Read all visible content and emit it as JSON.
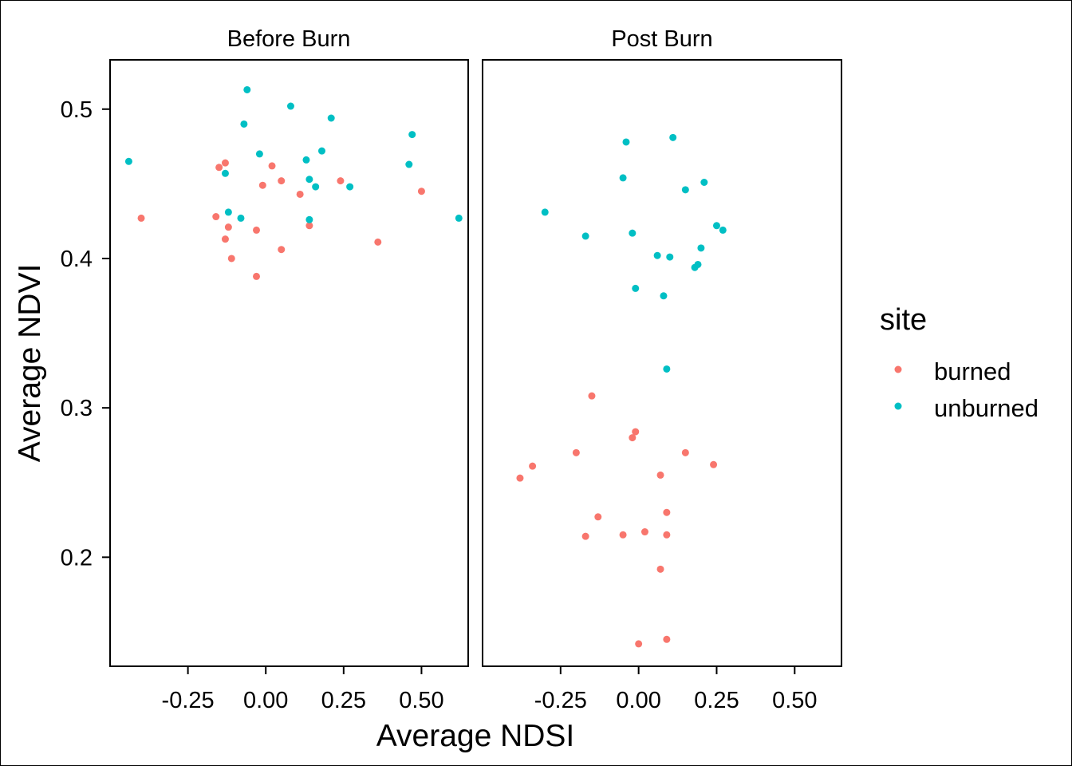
{
  "chart_data": {
    "type": "scatter",
    "xlabel": "Average NDSI",
    "ylabel": "Average NDVI",
    "xlim": [
      -0.5,
      0.65
    ],
    "ylim": [
      0.127,
      0.533
    ],
    "xticks": [
      -0.25,
      0.0,
      0.25,
      0.5
    ],
    "xtick_labels": [
      "-0.25",
      "0.00",
      "0.25",
      "0.50"
    ],
    "yticks": [
      0.2,
      0.3,
      0.4,
      0.5
    ],
    "ytick_labels": [
      "0.2",
      "0.3",
      "0.4",
      "0.5"
    ],
    "grid": false,
    "legend": {
      "title": "site",
      "position": "right",
      "entries": [
        {
          "name": "burned",
          "color": "#F8766D"
        },
        {
          "name": "unburned",
          "color": "#00BFC4"
        }
      ]
    },
    "panels": [
      {
        "title": "Before Burn",
        "series": [
          {
            "name": "burned",
            "color": "#F8766D",
            "points": [
              [
                -0.4,
                0.427
              ],
              [
                -0.16,
                0.428
              ],
              [
                -0.15,
                0.461
              ],
              [
                -0.13,
                0.464
              ],
              [
                -0.13,
                0.413
              ],
              [
                -0.12,
                0.421
              ],
              [
                -0.11,
                0.4
              ],
              [
                -0.03,
                0.419
              ],
              [
                -0.03,
                0.388
              ],
              [
                -0.01,
                0.449
              ],
              [
                0.02,
                0.462
              ],
              [
                0.05,
                0.452
              ],
              [
                0.05,
                0.406
              ],
              [
                0.11,
                0.443
              ],
              [
                0.14,
                0.422
              ],
              [
                0.24,
                0.452
              ],
              [
                0.36,
                0.411
              ],
              [
                0.5,
                0.445
              ]
            ]
          },
          {
            "name": "unburned",
            "color": "#00BFC4",
            "points": [
              [
                -0.44,
                0.465
              ],
              [
                -0.13,
                0.457
              ],
              [
                -0.12,
                0.431
              ],
              [
                -0.08,
                0.427
              ],
              [
                -0.07,
                0.49
              ],
              [
                -0.06,
                0.513
              ],
              [
                -0.02,
                0.47
              ],
              [
                0.08,
                0.502
              ],
              [
                0.13,
                0.466
              ],
              [
                0.14,
                0.453
              ],
              [
                0.14,
                0.426
              ],
              [
                0.16,
                0.448
              ],
              [
                0.18,
                0.472
              ],
              [
                0.21,
                0.494
              ],
              [
                0.27,
                0.448
              ],
              [
                0.46,
                0.463
              ],
              [
                0.47,
                0.483
              ],
              [
                0.62,
                0.427
              ]
            ]
          }
        ]
      },
      {
        "title": "Post Burn",
        "series": [
          {
            "name": "burned",
            "color": "#F8766D",
            "points": [
              [
                -0.38,
                0.253
              ],
              [
                -0.34,
                0.261
              ],
              [
                -0.2,
                0.27
              ],
              [
                -0.17,
                0.214
              ],
              [
                -0.15,
                0.308
              ],
              [
                -0.13,
                0.227
              ],
              [
                -0.05,
                0.215
              ],
              [
                -0.02,
                0.28
              ],
              [
                -0.01,
                0.284
              ],
              [
                0.0,
                0.142
              ],
              [
                0.02,
                0.217
              ],
              [
                0.07,
                0.255
              ],
              [
                0.07,
                0.192
              ],
              [
                0.09,
                0.145
              ],
              [
                0.09,
                0.23
              ],
              [
                0.09,
                0.215
              ],
              [
                0.15,
                0.27
              ],
              [
                0.24,
                0.262
              ]
            ]
          },
          {
            "name": "unburned",
            "color": "#00BFC4",
            "points": [
              [
                -0.3,
                0.431
              ],
              [
                -0.17,
                0.415
              ],
              [
                -0.05,
                0.454
              ],
              [
                -0.04,
                0.478
              ],
              [
                -0.02,
                0.417
              ],
              [
                -0.01,
                0.38
              ],
              [
                0.06,
                0.402
              ],
              [
                0.08,
                0.375
              ],
              [
                0.09,
                0.326
              ],
              [
                0.1,
                0.401
              ],
              [
                0.11,
                0.481
              ],
              [
                0.15,
                0.446
              ],
              [
                0.18,
                0.394
              ],
              [
                0.19,
                0.396
              ],
              [
                0.2,
                0.407
              ],
              [
                0.21,
                0.451
              ],
              [
                0.25,
                0.422
              ],
              [
                0.27,
                0.419
              ]
            ]
          }
        ]
      }
    ]
  }
}
